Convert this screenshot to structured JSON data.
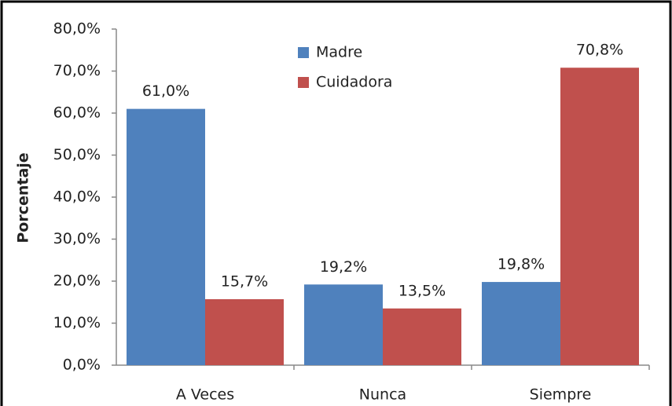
{
  "chart_data": {
    "type": "bar",
    "y_label": "Porcentaje",
    "categories": [
      "A Veces",
      "Nunca",
      "Siempre"
    ],
    "series": [
      {
        "name": "Madre",
        "color": "#4f81bd",
        "values": [
          61.0,
          19.2,
          19.8
        ],
        "value_labels": [
          "61,0%",
          "19,2%",
          "19,8%"
        ]
      },
      {
        "name": "Cuidadora",
        "color": "#c0504d",
        "values": [
          15.7,
          13.5,
          70.8
        ],
        "value_labels": [
          "15,7%",
          "13,5%",
          "70,8%"
        ]
      }
    ],
    "ylim": [
      0,
      80
    ],
    "yticks": [
      {
        "value": 0,
        "label": "0,0%"
      },
      {
        "value": 10,
        "label": "10,0%"
      },
      {
        "value": 20,
        "label": "20,0%"
      },
      {
        "value": 30,
        "label": "30,0%"
      },
      {
        "value": 40,
        "label": "40,0%"
      },
      {
        "value": 50,
        "label": "50,0%"
      },
      {
        "value": 60,
        "label": "60,0%"
      },
      {
        "value": 70,
        "label": "70,0%"
      },
      {
        "value": 80,
        "label": "80,0%"
      }
    ],
    "legend": "top-center"
  }
}
